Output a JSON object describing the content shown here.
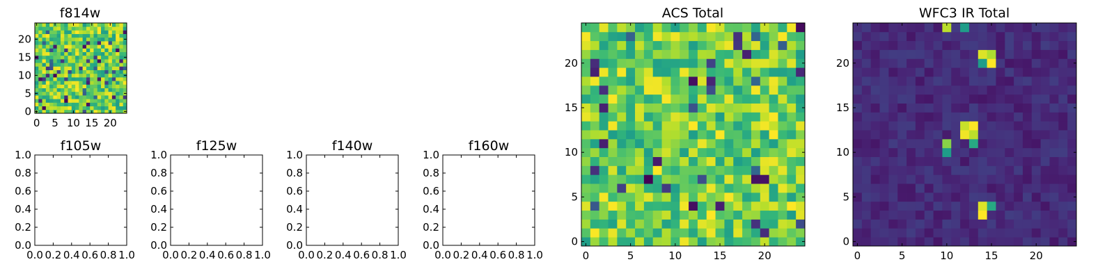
{
  "chart_data": [
    {
      "id": "f814w",
      "type": "heatmap",
      "title": "f814w",
      "xlabel": "",
      "ylabel": "",
      "grid_size": 25,
      "xlim": [
        -0.5,
        24.5
      ],
      "ylim": [
        -0.5,
        24.5
      ],
      "xticks": [
        0,
        5,
        10,
        15,
        20
      ],
      "yticks": [
        0,
        5,
        10,
        15,
        20
      ],
      "colormap": "viridis",
      "grid": false,
      "pattern": "noise",
      "seed": 814
    },
    {
      "id": "f105w",
      "type": "empty",
      "title": "f105w",
      "xlim": [
        0,
        1
      ],
      "ylim": [
        0,
        1
      ],
      "xticks": [
        "0.0",
        "0.2",
        "0.4",
        "0.6",
        "0.8",
        "1.0"
      ],
      "yticks": [
        "0.0",
        "0.2",
        "0.4",
        "0.6",
        "0.8",
        "1.0"
      ],
      "grid": false
    },
    {
      "id": "f125w",
      "type": "empty",
      "title": "f125w",
      "xlim": [
        0,
        1
      ],
      "ylim": [
        0,
        1
      ],
      "xticks": [
        "0.0",
        "0.2",
        "0.4",
        "0.6",
        "0.8",
        "1.0"
      ],
      "yticks": [
        "0.0",
        "0.2",
        "0.4",
        "0.6",
        "0.8",
        "1.0"
      ],
      "grid": false
    },
    {
      "id": "f140w",
      "type": "empty",
      "title": "f140w",
      "xlim": [
        0,
        1
      ],
      "ylim": [
        0,
        1
      ],
      "xticks": [
        "0.0",
        "0.2",
        "0.4",
        "0.6",
        "0.8",
        "1.0"
      ],
      "yticks": [
        "0.0",
        "0.2",
        "0.4",
        "0.6",
        "0.8",
        "1.0"
      ],
      "grid": false
    },
    {
      "id": "f160w",
      "type": "empty",
      "title": "f160w",
      "xlim": [
        0,
        1
      ],
      "ylim": [
        0,
        1
      ],
      "xticks": [
        "0.0",
        "0.2",
        "0.4",
        "0.6",
        "0.8",
        "1.0"
      ],
      "yticks": [
        "0.0",
        "0.2",
        "0.4",
        "0.6",
        "0.8",
        "1.0"
      ],
      "grid": false
    },
    {
      "id": "acs_total",
      "type": "heatmap",
      "title": "ACS Total",
      "xlabel": "",
      "ylabel": "",
      "grid_size": 25,
      "xlim": [
        -0.5,
        24.5
      ],
      "ylim": [
        -0.5,
        24.5
      ],
      "xticks": [
        0,
        5,
        10,
        15,
        20
      ],
      "yticks": [
        0,
        5,
        10,
        15,
        20
      ],
      "colormap": "viridis",
      "grid": false,
      "pattern": "noise",
      "seed": 2024
    },
    {
      "id": "wfc3_ir_total",
      "type": "heatmap",
      "title": "WFC3 IR Total",
      "xlabel": "",
      "ylabel": "",
      "grid_size": 25,
      "xlim": [
        -0.5,
        24.5
      ],
      "ylim": [
        -0.5,
        24.5
      ],
      "xticks": [
        0,
        5,
        10,
        15,
        20
      ],
      "yticks": [
        0,
        5,
        10,
        15,
        20
      ],
      "colormap": "viridis",
      "grid": false,
      "pattern": "sources",
      "seed": 77,
      "background_level": 0.12,
      "bright_pixels": [
        {
          "x": 14,
          "y": 21,
          "v": 0.95
        },
        {
          "x": 15,
          "y": 21,
          "v": 0.88
        },
        {
          "x": 14,
          "y": 20,
          "v": 0.55
        },
        {
          "x": 15,
          "y": 20,
          "v": 1.0
        },
        {
          "x": 12,
          "y": 13,
          "v": 0.92
        },
        {
          "x": 13,
          "y": 13,
          "v": 1.0
        },
        {
          "x": 12,
          "y": 12,
          "v": 0.98
        },
        {
          "x": 13,
          "y": 12,
          "v": 0.9
        },
        {
          "x": 13,
          "y": 11,
          "v": 0.6
        },
        {
          "x": 10,
          "y": 11,
          "v": 0.82
        },
        {
          "x": 10,
          "y": 10,
          "v": 0.55
        },
        {
          "x": 14,
          "y": 4,
          "v": 0.95
        },
        {
          "x": 14,
          "y": 3,
          "v": 1.0
        },
        {
          "x": 15,
          "y": 4,
          "v": 0.6
        },
        {
          "x": 10,
          "y": 24,
          "v": 0.9
        },
        {
          "x": 12,
          "y": 24,
          "v": 0.55
        }
      ]
    }
  ]
}
